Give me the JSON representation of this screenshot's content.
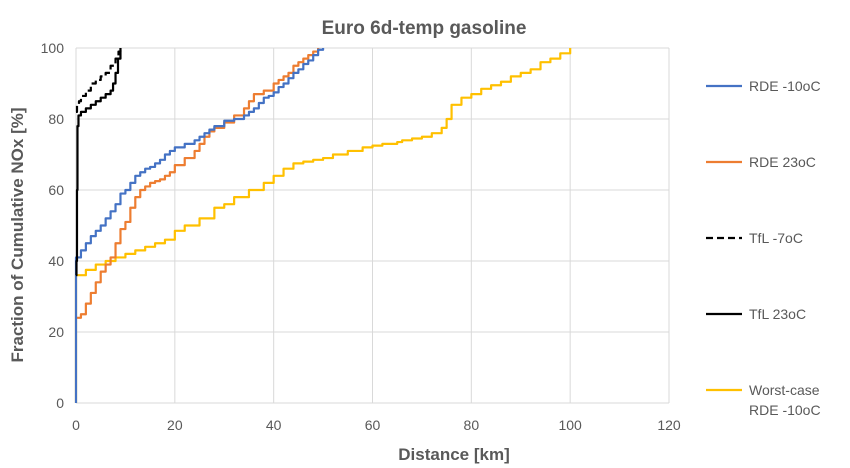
{
  "chart_data": {
    "type": "line",
    "title": "Euro 6d-temp gasoline",
    "xlabel": "Distance [km]",
    "ylabel": "Fraction of Cumulative NOx [%]",
    "xlim": [
      0,
      120
    ],
    "ylim": [
      0,
      100
    ],
    "xticks": [
      0,
      20,
      40,
      60,
      80,
      100,
      120
    ],
    "yticks": [
      0,
      20,
      40,
      60,
      80,
      100
    ],
    "grid": "both",
    "legend": "right",
    "series": [
      {
        "name": "RDE -10oC",
        "color": "#4472c4",
        "dash": "solid",
        "points": [
          [
            0,
            0
          ],
          [
            0,
            41
          ],
          [
            1,
            43
          ],
          [
            2,
            45
          ],
          [
            3,
            47
          ],
          [
            4,
            48.5
          ],
          [
            5,
            50
          ],
          [
            6,
            52
          ],
          [
            7,
            54
          ],
          [
            8,
            56
          ],
          [
            9,
            59
          ],
          [
            10,
            60
          ],
          [
            11,
            62
          ],
          [
            12,
            64
          ],
          [
            13,
            65
          ],
          [
            14,
            66
          ],
          [
            15,
            66.5
          ],
          [
            16,
            67.5
          ],
          [
            17,
            68.5
          ],
          [
            18,
            70
          ],
          [
            19,
            71
          ],
          [
            20,
            72
          ],
          [
            22,
            73
          ],
          [
            24,
            74
          ],
          [
            25,
            75
          ],
          [
            26,
            76
          ],
          [
            27,
            77
          ],
          [
            28,
            78
          ],
          [
            30,
            79.5
          ],
          [
            32,
            80
          ],
          [
            34,
            81
          ],
          [
            35,
            82
          ],
          [
            36,
            83
          ],
          [
            37,
            84.5
          ],
          [
            38,
            86
          ],
          [
            39,
            86.5
          ],
          [
            40,
            87.5
          ],
          [
            41,
            89
          ],
          [
            42,
            90
          ],
          [
            43,
            91.5
          ],
          [
            44,
            93
          ],
          [
            45,
            94
          ],
          [
            46,
            95.5
          ],
          [
            47,
            96.5
          ],
          [
            48,
            98
          ],
          [
            49,
            99.5
          ],
          [
            50,
            100
          ]
        ]
      },
      {
        "name": "RDE 23oC",
        "color": "#ed7d31",
        "dash": "solid",
        "points": [
          [
            0,
            24
          ],
          [
            1,
            25
          ],
          [
            2,
            28
          ],
          [
            3,
            31
          ],
          [
            4,
            34
          ],
          [
            5,
            37
          ],
          [
            6,
            39
          ],
          [
            7,
            41
          ],
          [
            8,
            45
          ],
          [
            9,
            49
          ],
          [
            10,
            51
          ],
          [
            11,
            55
          ],
          [
            12,
            58
          ],
          [
            13,
            60
          ],
          [
            14,
            61
          ],
          [
            15,
            62
          ],
          [
            16,
            62.5
          ],
          [
            17,
            63
          ],
          [
            18,
            64
          ],
          [
            19,
            65
          ],
          [
            20,
            67
          ],
          [
            22,
            69
          ],
          [
            24,
            71
          ],
          [
            25,
            73
          ],
          [
            26,
            75
          ],
          [
            27,
            76.5
          ],
          [
            28,
            77.5
          ],
          [
            30,
            79
          ],
          [
            32,
            81
          ],
          [
            34,
            83
          ],
          [
            35,
            85
          ],
          [
            36,
            87
          ],
          [
            38,
            88
          ],
          [
            40,
            90
          ],
          [
            41,
            91
          ],
          [
            42,
            92
          ],
          [
            43,
            93
          ],
          [
            44,
            95
          ],
          [
            45,
            96
          ],
          [
            46,
            97
          ],
          [
            47,
            98
          ],
          [
            48,
            99
          ],
          [
            49,
            100
          ]
        ]
      },
      {
        "name": "TfL -7oC",
        "color": "#000000",
        "dash": "dashed",
        "points": [
          [
            0,
            82
          ],
          [
            0.2,
            84
          ],
          [
            0.6,
            85
          ],
          [
            1,
            86.5
          ],
          [
            2,
            88
          ],
          [
            3,
            90
          ],
          [
            4,
            91
          ],
          [
            5,
            92
          ],
          [
            6,
            93
          ],
          [
            7,
            95
          ],
          [
            8,
            97
          ],
          [
            8.6,
            99
          ],
          [
            9,
            100
          ]
        ]
      },
      {
        "name": "TfL 23oC",
        "color": "#000000",
        "dash": "solid",
        "points": [
          [
            0,
            36
          ],
          [
            0.1,
            40
          ],
          [
            0.2,
            60
          ],
          [
            0.3,
            78
          ],
          [
            0.5,
            81
          ],
          [
            1,
            82
          ],
          [
            2,
            83
          ],
          [
            3,
            84
          ],
          [
            4,
            85
          ],
          [
            5,
            86
          ],
          [
            6,
            87
          ],
          [
            7,
            88
          ],
          [
            7.5,
            90
          ],
          [
            8,
            93
          ],
          [
            8.5,
            97
          ],
          [
            9,
            100
          ]
        ]
      },
      {
        "name": "Worst-case RDE -10oC",
        "name_lines": [
          "Worst-case",
          "RDE -10oC"
        ],
        "color": "#ffc000",
        "dash": "solid",
        "points": [
          [
            0,
            0
          ],
          [
            0,
            36
          ],
          [
            2,
            37.5
          ],
          [
            4,
            39
          ],
          [
            6,
            40
          ],
          [
            8,
            41
          ],
          [
            10,
            42
          ],
          [
            12,
            43
          ],
          [
            14,
            44
          ],
          [
            16,
            45
          ],
          [
            18,
            46
          ],
          [
            20,
            48.5
          ],
          [
            22,
            50
          ],
          [
            25,
            52
          ],
          [
            28,
            55
          ],
          [
            30,
            56
          ],
          [
            32,
            58
          ],
          [
            35,
            60
          ],
          [
            38,
            62
          ],
          [
            40,
            64
          ],
          [
            42,
            66
          ],
          [
            44,
            67.5
          ],
          [
            46,
            68
          ],
          [
            48,
            68.5
          ],
          [
            50,
            69
          ],
          [
            52,
            70
          ],
          [
            55,
            71
          ],
          [
            58,
            72
          ],
          [
            60,
            72.5
          ],
          [
            62,
            73
          ],
          [
            65,
            73.5
          ],
          [
            66,
            74
          ],
          [
            68,
            74.5
          ],
          [
            70,
            75
          ],
          [
            72,
            76
          ],
          [
            74,
            77.5
          ],
          [
            75,
            80
          ],
          [
            76,
            84
          ],
          [
            78,
            86
          ],
          [
            80,
            87
          ],
          [
            82,
            88.5
          ],
          [
            84,
            89.5
          ],
          [
            86,
            90.5
          ],
          [
            88,
            92
          ],
          [
            90,
            93
          ],
          [
            92,
            94
          ],
          [
            94,
            96
          ],
          [
            96,
            97
          ],
          [
            98,
            98.5
          ],
          [
            100,
            100
          ]
        ]
      }
    ]
  }
}
